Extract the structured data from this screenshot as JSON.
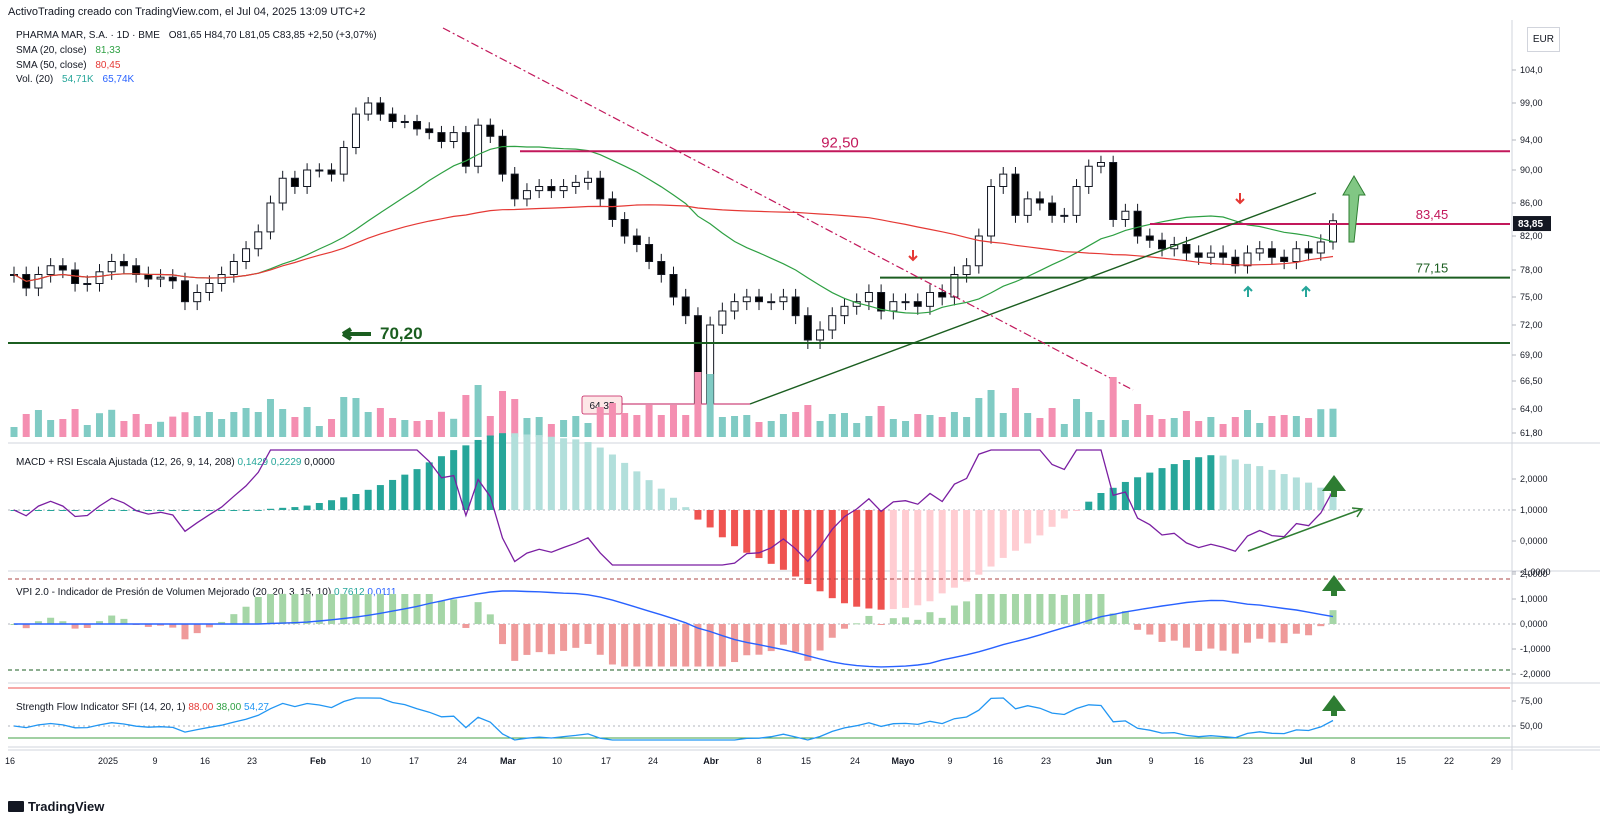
{
  "header": {
    "credit": "ActivoTrading creado con TradingView.com, el Jul 04, 2025 13:09 UTC+2"
  },
  "currency": "EUR",
  "brand": "TradingView",
  "legend": {
    "symbol": "PHARMA MAR, S.A. · 1D · BME",
    "ohlc": "O81,65  H84,70  L81,05  C83,85  +2,50 (+3,07%)",
    "sma20_name": "SMA (20, close)",
    "sma20_value": "81,33",
    "sma50_name": "SMA (50, close)",
    "sma50_value": "80,45",
    "vol_name": "Vol. (20)",
    "vol_v1": "54,71K",
    "vol_v2": "65,74K"
  },
  "pane2_label": {
    "name": "MACD + RSI Escala Ajustada (12, 26, 9, 14, 208)",
    "v1": "0,1429",
    "v2": "0,2229",
    "v3": "0,0000"
  },
  "pane3_label": {
    "name": "VPI 2.0 - Indicador de Presión de Volumen Mejorado (20, 20, 3, 15, 10)",
    "v1": "0,7612",
    "v2": "0,0111"
  },
  "pane4_label": {
    "name": "Strength Flow Indicator SFI (14, 20, 1)",
    "v1": "88,00",
    "v2": "38,00",
    "v3": "54,27"
  },
  "colors": {
    "up": "#ffffff",
    "down": "#000000",
    "sma20": "#2ea043",
    "sma50": "#e53935",
    "resist": "#c2185b",
    "support": "#1b5e20",
    "vol_up": "#80cbc4",
    "vol_down": "#f48fb1",
    "macd_pos": "#26a69a",
    "macd_neg": "#ef5350",
    "rsi": "#7b1fa2",
    "vpi_line": "#2962ff",
    "sfi": "#2196f3"
  },
  "chart_data": [
    {
      "type": "candlestick",
      "title": "PHARMA MAR, S.A. · 1D · BME",
      "y_axis_ticks": [
        "104,0",
        "99,00",
        "94,00",
        "90,00",
        "86,00",
        "82,00",
        "78,00",
        "75,00",
        "72,00",
        "69,00",
        "66,50",
        "64,00",
        "61,80"
      ],
      "x_axis_ticks": [
        "16",
        "2025",
        "9",
        "16",
        "23",
        "Feb",
        "10",
        "17",
        "24",
        "Mar",
        "10",
        "17",
        "24",
        "Abr",
        "8",
        "15",
        "24",
        "Mayo",
        "9",
        "16",
        "23",
        "Jun",
        "9",
        "16",
        "23",
        "Jul",
        "8",
        "15",
        "22",
        "29"
      ],
      "last_price_label": "83,85",
      "annotations": [
        {
          "text": "92,50",
          "type": "resistance",
          "value": 92.5
        },
        {
          "text": "83,45",
          "type": "resistance",
          "value": 83.45
        },
        {
          "text": "77,15",
          "type": "support",
          "value": 77.15
        },
        {
          "text": "70,20",
          "type": "support",
          "value": 70.2
        },
        {
          "text": "64,35",
          "type": "low",
          "value": 64.35
        }
      ],
      "close_series_approx": [
        77.5,
        76,
        77.5,
        78.5,
        78,
        76.5,
        76.5,
        77.8,
        79,
        78.5,
        77.5,
        77,
        77.2,
        76.8,
        74.5,
        75.5,
        76.5,
        77.5,
        79,
        80.5,
        82.5,
        86,
        89,
        88,
        90,
        90,
        89.5,
        93,
        97.5,
        99,
        97.5,
        96.5,
        96.5,
        95.5,
        95,
        93.8,
        95,
        90.5,
        96,
        94.5,
        89.5,
        86.5,
        87.5,
        88,
        87.5,
        88,
        88.5,
        89,
        86.5,
        84,
        82,
        81,
        79,
        77.5,
        75,
        73,
        64.5,
        72,
        73.5,
        74.5,
        75,
        74.5,
        74.5,
        75,
        73,
        70.5,
        71.5,
        73,
        74,
        74.5,
        75.5,
        73.5,
        74.5,
        74.5,
        74,
        75.5,
        75,
        77.5,
        78.5,
        82,
        88,
        89.5,
        84.5,
        86.5,
        86,
        84.5,
        84.5,
        88,
        90.5,
        91,
        84,
        85,
        82,
        81.5,
        80.5,
        81,
        80,
        79.5,
        80,
        79.5,
        78.5,
        80,
        80.5,
        79.5,
        79,
        80.5,
        80,
        81.3,
        83.85
      ],
      "sma20_last": 81.33,
      "sma50_last": 80.45,
      "volume_last": [
        "54,71K",
        "65,74K"
      ]
    },
    {
      "type": "bar",
      "title": "MACD + RSI Escala Ajustada (12, 26, 9, 14, 208)",
      "y_axis_ticks": [
        "2,0000",
        "1,0000",
        "0,0000",
        "-1,0000"
      ],
      "last_values": [
        0.1429,
        0.2229,
        0.0
      ]
    },
    {
      "type": "bar",
      "title": "VPI 2.0 - Indicador de Presión de Volumen Mejorado (20, 20, 3, 15, 10)",
      "y_axis_ticks": [
        "2,0000",
        "1,0000",
        "0,0000",
        "-1,0000",
        "-2,0000"
      ],
      "last_values": [
        0.7612,
        0.0111
      ]
    },
    {
      "type": "line",
      "title": "Strength Flow Indicator SFI (14, 20, 1)",
      "y_axis_ticks": [
        "75,00",
        "50,00"
      ],
      "levels": [
        88,
        38
      ],
      "last_value": 54.27
    }
  ]
}
